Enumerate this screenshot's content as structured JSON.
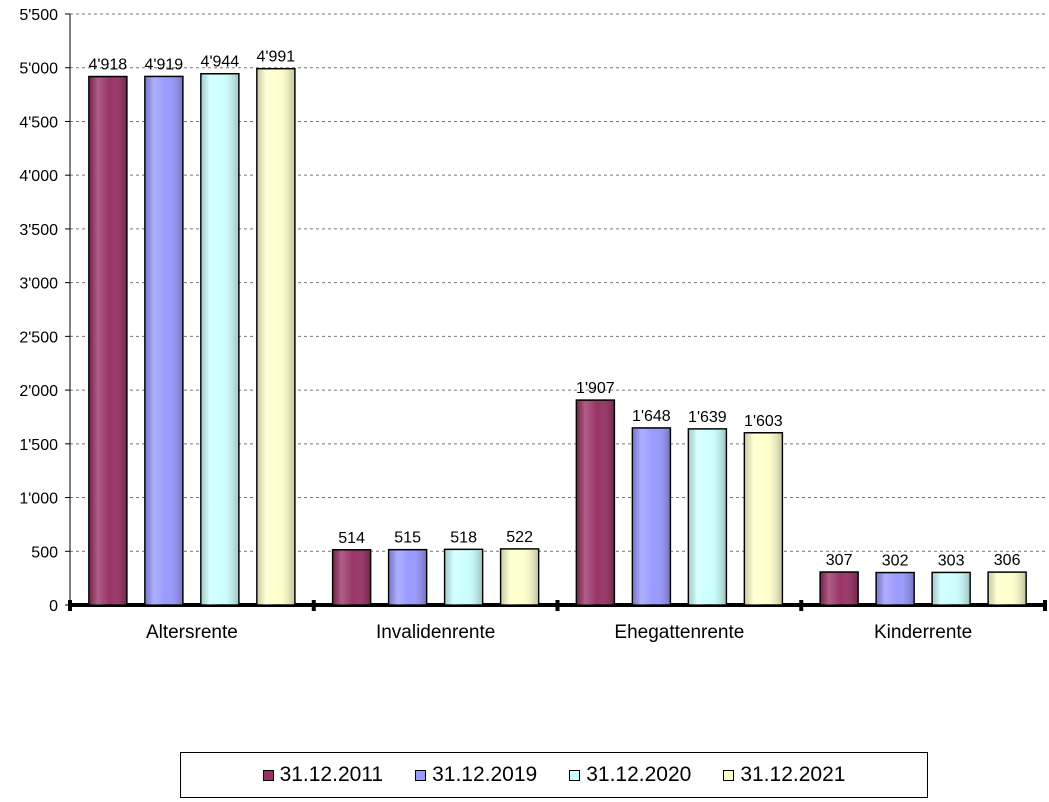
{
  "chart_data": {
    "type": "bar",
    "categories": [
      "Altersrente",
      "Invalidenrente",
      "Ehegattenrente",
      "Kinderrente"
    ],
    "series": [
      {
        "name": "31.12.2011",
        "color": "#993366",
        "values": [
          4918,
          514,
          1907,
          307
        ],
        "labels": [
          "4'918",
          "514",
          "1'907",
          "307"
        ]
      },
      {
        "name": "31.12.2019",
        "color": "#9999ff",
        "values": [
          4919,
          515,
          1648,
          302
        ],
        "labels": [
          "4'919",
          "515",
          "1'648",
          "302"
        ]
      },
      {
        "name": "31.12.2020",
        "color": "#ccffff",
        "values": [
          4944,
          518,
          1639,
          303
        ],
        "labels": [
          "4'944",
          "518",
          "1'639",
          "303"
        ]
      },
      {
        "name": "31.12.2021",
        "color": "#ffffcc",
        "values": [
          4991,
          522,
          1603,
          306
        ],
        "labels": [
          "4'991",
          "522",
          "1'603",
          "306"
        ]
      }
    ],
    "y_ticks": [
      0,
      500,
      1000,
      1500,
      2000,
      2500,
      3000,
      3500,
      4000,
      4500,
      5000,
      5500
    ],
    "y_tick_labels": [
      "0",
      "500",
      "1'000",
      "1'500",
      "2'000",
      "2'500",
      "3'000",
      "3'500",
      "4'000",
      "4'500",
      "5'000",
      "5'500"
    ],
    "ylim": [
      0,
      5500
    ],
    "grid": "horizontal dashed",
    "legend_position": "bottom",
    "title": "",
    "xlabel": "",
    "ylabel": ""
  }
}
